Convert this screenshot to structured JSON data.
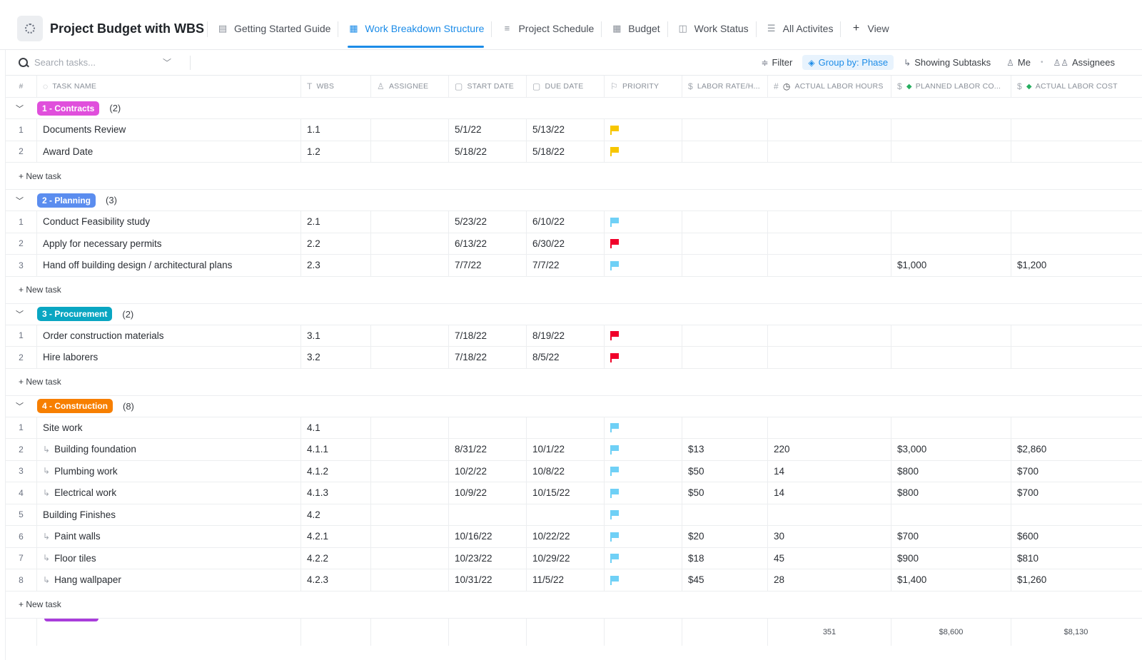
{
  "app": {
    "title": "Project Budget with WBS",
    "tabs": [
      {
        "label": "Getting Started Guide",
        "icon": "doc-icon"
      },
      {
        "label": "Work Breakdown Structure",
        "icon": "table-icon",
        "active": true
      },
      {
        "label": "Project Schedule",
        "icon": "gantt-icon"
      },
      {
        "label": "Budget",
        "icon": "table-icon"
      },
      {
        "label": "Work Status",
        "icon": "board-icon"
      },
      {
        "label": "All Activites",
        "icon": "list-icon"
      },
      {
        "label": "View",
        "icon": "plus-icon"
      }
    ]
  },
  "toolbar": {
    "search_placeholder": "Search tasks...",
    "filter": "Filter",
    "group_by": "Group by: Phase",
    "subtasks": "Showing Subtasks",
    "me": "Me",
    "assignees": "Assignees"
  },
  "columns": {
    "num": "#",
    "name": "TASK NAME",
    "wbs": "WBS",
    "assignee": "ASSIGNEE",
    "start": "START DATE",
    "due": "DUE DATE",
    "priority": "PRIORITY",
    "rate": "LABOR RATE/H...",
    "hours": "ACTUAL LABOR HOURS",
    "planned": "PLANNED LABOR CO...",
    "actual": "ACTUAL LABOR COST"
  },
  "new_task_label": "+ New task",
  "groups": [
    {
      "label": "1 - Contracts",
      "count": "(2)",
      "color": "#e04fdc",
      "tasks": [
        {
          "num": "1",
          "name": "Documents Review",
          "wbs": "1.1",
          "start": "5/1/22",
          "due": "5/13/22",
          "priority": "yellow",
          "rate": "",
          "hours": "",
          "planned": "",
          "actual": "",
          "sub": false
        },
        {
          "num": "2",
          "name": "Award Date",
          "wbs": "1.2",
          "start": "5/18/22",
          "due": "5/18/22",
          "priority": "yellow",
          "rate": "",
          "hours": "",
          "planned": "",
          "actual": "",
          "sub": false
        }
      ]
    },
    {
      "label": "2 - Planning",
      "count": "(3)",
      "color": "#5b8def",
      "tasks": [
        {
          "num": "1",
          "name": "Conduct Feasibility study",
          "wbs": "2.1",
          "start": "5/23/22",
          "due": "6/10/22",
          "priority": "blue",
          "rate": "",
          "hours": "",
          "planned": "",
          "actual": "",
          "sub": false
        },
        {
          "num": "2",
          "name": "Apply for necessary permits",
          "wbs": "2.2",
          "start": "6/13/22",
          "due": "6/30/22",
          "priority": "red",
          "rate": "",
          "hours": "",
          "planned": "",
          "actual": "",
          "sub": false
        },
        {
          "num": "3",
          "name": "Hand off building design / architectural plans",
          "wbs": "2.3",
          "start": "7/7/22",
          "due": "7/7/22",
          "priority": "blue",
          "rate": "",
          "hours": "",
          "planned": "$1,000",
          "actual": "$1,200",
          "sub": false
        }
      ]
    },
    {
      "label": "3 - Procurement",
      "count": "(2)",
      "color": "#0aa6c2",
      "tasks": [
        {
          "num": "1",
          "name": "Order construction materials",
          "wbs": "3.1",
          "start": "7/18/22",
          "due": "8/19/22",
          "priority": "red",
          "rate": "",
          "hours": "",
          "planned": "",
          "actual": "",
          "sub": false
        },
        {
          "num": "2",
          "name": "Hire laborers",
          "wbs": "3.2",
          "start": "7/18/22",
          "due": "8/5/22",
          "priority": "red",
          "rate": "",
          "hours": "",
          "planned": "",
          "actual": "",
          "sub": false
        }
      ]
    },
    {
      "label": "4 - Construction",
      "count": "(8)",
      "color": "#f77f00",
      "tasks": [
        {
          "num": "1",
          "name": "Site work",
          "wbs": "4.1",
          "start": "",
          "due": "",
          "priority": "blue",
          "rate": "",
          "hours": "",
          "planned": "",
          "actual": "",
          "sub": false
        },
        {
          "num": "2",
          "name": "Building foundation",
          "wbs": "4.1.1",
          "start": "8/31/22",
          "due": "10/1/22",
          "priority": "blue",
          "rate": "$13",
          "hours": "220",
          "planned": "$3,000",
          "actual": "$2,860",
          "sub": true
        },
        {
          "num": "3",
          "name": "Plumbing work",
          "wbs": "4.1.2",
          "start": "10/2/22",
          "due": "10/8/22",
          "priority": "blue",
          "rate": "$50",
          "hours": "14",
          "planned": "$800",
          "actual": "$700",
          "sub": true
        },
        {
          "num": "4",
          "name": "Electrical work",
          "wbs": "4.1.3",
          "start": "10/9/22",
          "due": "10/15/22",
          "priority": "blue",
          "rate": "$50",
          "hours": "14",
          "planned": "$800",
          "actual": "$700",
          "sub": true
        },
        {
          "num": "5",
          "name": "Building Finishes",
          "wbs": "4.2",
          "start": "",
          "due": "",
          "priority": "blue",
          "rate": "",
          "hours": "",
          "planned": "",
          "actual": "",
          "sub": false
        },
        {
          "num": "6",
          "name": "Paint walls",
          "wbs": "4.2.1",
          "start": "10/16/22",
          "due": "10/22/22",
          "priority": "blue",
          "rate": "$20",
          "hours": "30",
          "planned": "$700",
          "actual": "$600",
          "sub": true
        },
        {
          "num": "7",
          "name": "Floor tiles",
          "wbs": "4.2.2",
          "start": "10/23/22",
          "due": "10/29/22",
          "priority": "blue",
          "rate": "$18",
          "hours": "45",
          "planned": "$900",
          "actual": "$810",
          "sub": true
        },
        {
          "num": "8",
          "name": "Hang wallpaper",
          "wbs": "4.2.3",
          "start": "10/31/22",
          "due": "11/5/22",
          "priority": "blue",
          "rate": "$45",
          "hours": "28",
          "planned": "$1,400",
          "actual": "$1,260",
          "sub": true
        }
      ]
    }
  ],
  "totals": {
    "hours": "351",
    "planned": "$8,600",
    "actual": "$8,130"
  },
  "colors": {
    "accent": "#1c8ce8",
    "next_group_pill": "#a93ddb"
  }
}
